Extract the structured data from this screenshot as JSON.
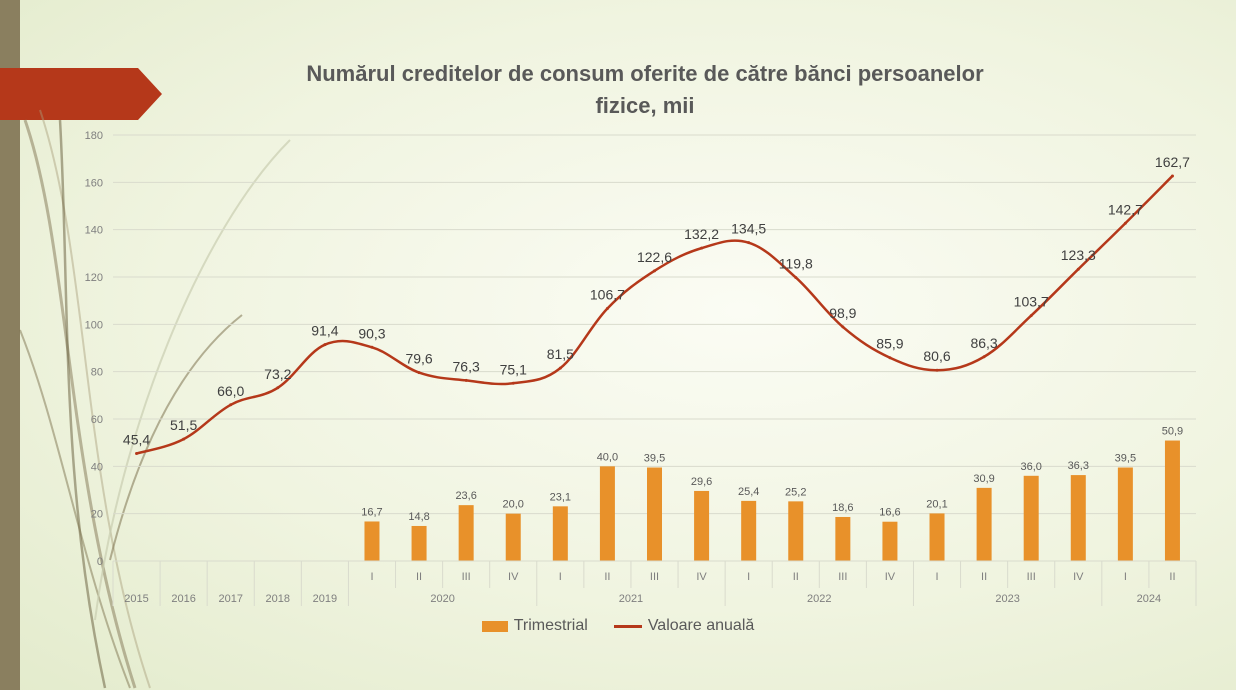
{
  "chart_data": {
    "type": "bar",
    "title": "Numărul creditelor de consum oferite de către bănci persoanelor fizice, mii",
    "ylim": [
      0,
      180
    ],
    "yticks": [
      0,
      20,
      40,
      60,
      80,
      100,
      120,
      140,
      160,
      180
    ],
    "categories": [
      "2015",
      "2016",
      "2017",
      "2018",
      "2019",
      "I",
      "II",
      "III",
      "IV",
      "I",
      "II",
      "III",
      "IV",
      "I",
      "II",
      "III",
      "IV",
      "I",
      "II",
      "III",
      "IV",
      "I",
      "II"
    ],
    "year_groups": [
      {
        "label": "2020",
        "start": 5,
        "end": 8
      },
      {
        "label": "2021",
        "start": 9,
        "end": 12
      },
      {
        "label": "2022",
        "start": 13,
        "end": 16
      },
      {
        "label": "2023",
        "start": 17,
        "end": 20
      },
      {
        "label": "2024",
        "start": 21,
        "end": 22
      }
    ],
    "series": [
      {
        "name": "Trimestrial",
        "type": "bar",
        "color": "#e8912a",
        "values": [
          null,
          null,
          null,
          null,
          null,
          16.7,
          14.8,
          23.6,
          20.0,
          23.1,
          40.0,
          39.5,
          29.6,
          25.4,
          25.2,
          18.6,
          16.6,
          20.1,
          30.9,
          36.0,
          36.3,
          39.5,
          50.9
        ],
        "labels": [
          "",
          "",
          "",
          "",
          "",
          "16,7",
          "14,8",
          "23,6",
          "20,0",
          "23,1",
          "40,0",
          "39,5",
          "29,6",
          "25,4",
          "25,2",
          "18,6",
          "16,6",
          "20,1",
          "30,9",
          "36,0",
          "36,3",
          "39,5",
          "50,9"
        ]
      },
      {
        "name": "Valoare anuală",
        "type": "line",
        "color": "#b5381a",
        "values": [
          45.4,
          51.5,
          66.0,
          73.2,
          91.4,
          90.3,
          79.6,
          76.3,
          75.1,
          81.5,
          106.7,
          122.6,
          132.2,
          134.5,
          119.8,
          98.9,
          85.9,
          80.6,
          86.3,
          103.7,
          123.3,
          142.7,
          162.7
        ],
        "labels": [
          "45,4",
          "51,5",
          "66,0",
          "73,2",
          "91,4",
          "90,3",
          "79,6",
          "76,3",
          "75,1",
          "81,5",
          "106,7",
          "122,6",
          "132,2",
          "134,5",
          "119,8",
          "98,9",
          "85,9",
          "80,6",
          "86,3",
          "103,7",
          "123,3",
          "142,7",
          "162,7"
        ]
      }
    ],
    "grid": true,
    "legend": "bottom-center"
  }
}
